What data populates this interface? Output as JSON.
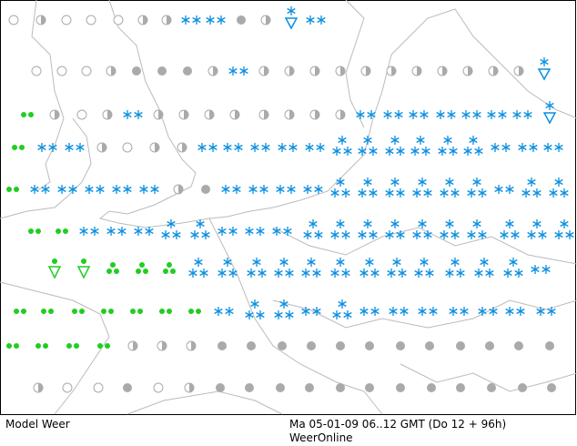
{
  "footer": {
    "left": "Model Weer",
    "right": "Ma 05-01-09 06..12 GMT (Do 12 + 96h)",
    "source": "WeerOnline"
  }
}
